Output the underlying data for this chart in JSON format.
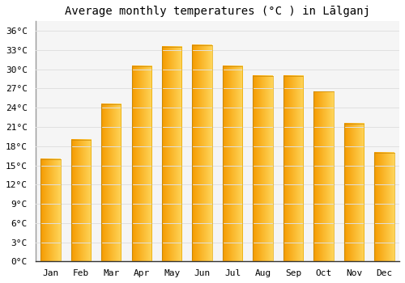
{
  "title": "Average monthly temperatures (°C ) in Lālganj",
  "months": [
    "Jan",
    "Feb",
    "Mar",
    "Apr",
    "May",
    "Jun",
    "Jul",
    "Aug",
    "Sep",
    "Oct",
    "Nov",
    "Dec"
  ],
  "values": [
    16,
    19,
    24.5,
    30.5,
    33.5,
    33.8,
    30.5,
    29,
    29,
    26.5,
    21.5,
    17
  ],
  "bar_color_main": "#FFA500",
  "bar_color_light": "#FFD060",
  "background_color": "#FFFFFF",
  "plot_bg_color": "#F5F5F5",
  "yticks": [
    0,
    3,
    6,
    9,
    12,
    15,
    18,
    21,
    24,
    27,
    30,
    33,
    36
  ],
  "ytick_labels": [
    "0°C",
    "3°C",
    "6°C",
    "9°C",
    "12°C",
    "15°C",
    "18°C",
    "21°C",
    "24°C",
    "27°C",
    "30°C",
    "33°C",
    "36°C"
  ],
  "ylim": [
    0,
    37.5
  ],
  "grid_color": "#E0E0E0",
  "title_fontsize": 10,
  "tick_fontsize": 8,
  "font_family": "monospace",
  "bar_width": 0.65
}
